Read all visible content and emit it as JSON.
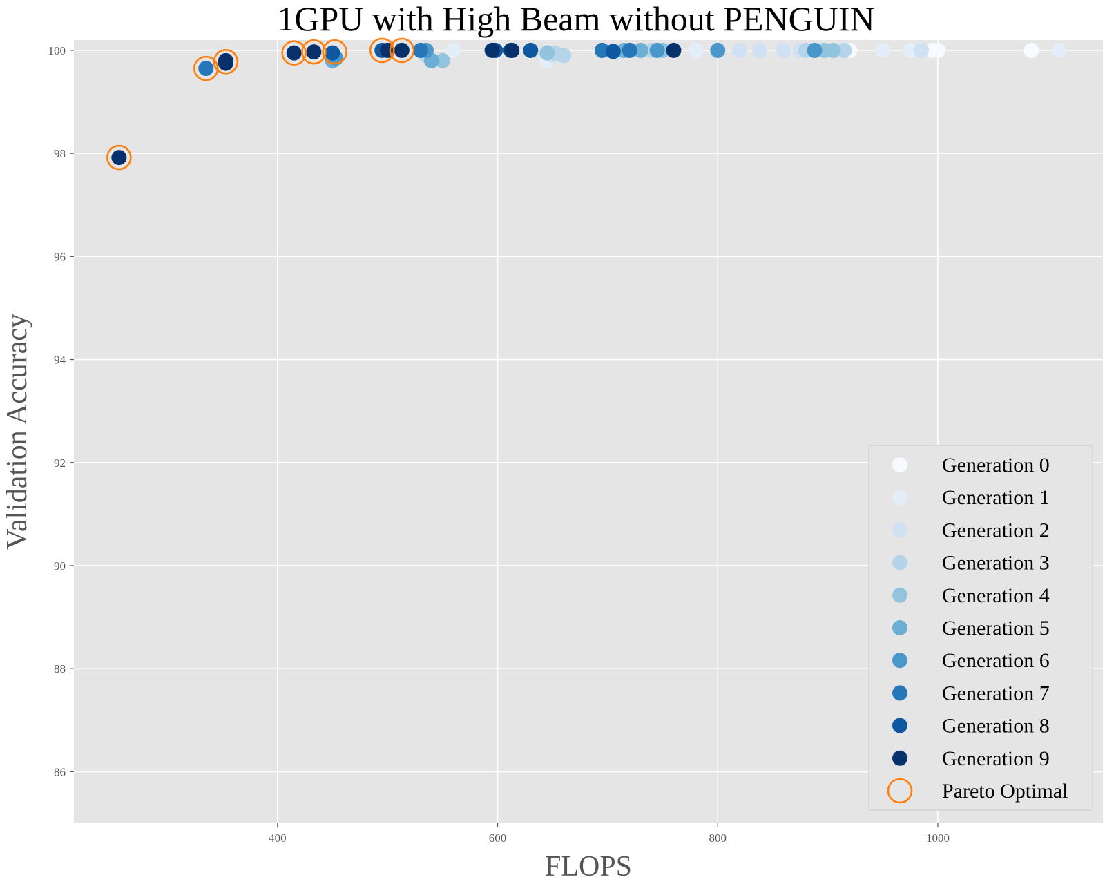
{
  "chart_data": {
    "type": "scatter",
    "title": "1GPU with High Beam without PENGUIN",
    "xlabel": "FLOPS",
    "ylabel": "Validation Accuracy",
    "xlim": [
      215,
      1150
    ],
    "ylim": [
      85,
      100.2
    ],
    "xticks": [
      400,
      600,
      800,
      1000
    ],
    "yticks": [
      86,
      88,
      90,
      92,
      94,
      96,
      98,
      100
    ],
    "grid": true,
    "legend_position": "lower-right",
    "series": [
      {
        "name": "Generation 0",
        "color": "#f7fbff",
        "points": [
          [
            920,
            100
          ],
          [
            1000,
            100
          ],
          [
            1085,
            100
          ],
          [
            995,
            100
          ],
          [
            600,
            100
          ]
        ]
      },
      {
        "name": "Generation 1",
        "color": "#e3eef9",
        "points": [
          [
            780,
            100
          ],
          [
            950,
            100
          ],
          [
            975,
            100
          ],
          [
            1110,
            100
          ],
          [
            645,
            99.8
          ],
          [
            560,
            100
          ]
        ]
      },
      {
        "name": "Generation 2",
        "color": "#cfe1f2",
        "points": [
          [
            820,
            100
          ],
          [
            838,
            100
          ],
          [
            860,
            100
          ],
          [
            875,
            100
          ],
          [
            985,
            100
          ],
          [
            650,
            99.9
          ],
          [
            708,
            99.95
          ]
        ]
      },
      {
        "name": "Generation 3",
        "color": "#b5d4e9",
        "points": [
          [
            660,
            99.9
          ],
          [
            652,
            99.95
          ],
          [
            535,
            99.9
          ],
          [
            915,
            100
          ],
          [
            740,
            100
          ],
          [
            880,
            100
          ]
        ]
      },
      {
        "name": "Generation 4",
        "color": "#93c4de",
        "points": [
          [
            550,
            99.8
          ],
          [
            645,
            99.95
          ],
          [
            905,
            100
          ],
          [
            750,
            100
          ],
          [
            897,
            100
          ]
        ]
      },
      {
        "name": "Generation 5",
        "color": "#6daed5",
        "points": [
          [
            540,
            99.8
          ],
          [
            450,
            99.8
          ],
          [
            730,
            100
          ],
          [
            715,
            100
          ]
        ]
      },
      {
        "name": "Generation 6",
        "color": "#4a98c9",
        "points": [
          [
            800,
            100
          ],
          [
            888,
            100
          ],
          [
            535,
            100
          ],
          [
            745,
            100
          ],
          [
            453,
            99.85
          ]
        ]
      },
      {
        "name": "Generation 7",
        "color": "#2676b8",
        "points": [
          [
            335,
            99.65
          ],
          [
            530,
            100
          ],
          [
            720,
            100
          ],
          [
            695,
            100
          ]
        ]
      },
      {
        "name": "Generation 8",
        "color": "#0d58a1",
        "points": [
          [
            450,
            99.95
          ],
          [
            495,
            100
          ],
          [
            630,
            100
          ],
          [
            705,
            99.98
          ],
          [
            598,
            100
          ],
          [
            612,
            100
          ]
        ]
      },
      {
        "name": "Generation 9",
        "color": "#08306b",
        "points": [
          [
            256,
            97.92
          ],
          [
            353,
            99.75
          ],
          [
            353,
            99.8
          ],
          [
            415,
            99.95
          ],
          [
            433,
            99.97
          ],
          [
            513,
            100
          ],
          [
            595,
            100
          ],
          [
            613,
            100
          ],
          [
            760,
            100
          ],
          [
            500,
            100
          ]
        ]
      }
    ],
    "pareto_optimal": {
      "name": "Pareto Optimal",
      "color": "#ff7f0e",
      "points": [
        [
          256,
          97.92
        ],
        [
          335,
          99.65
        ],
        [
          353,
          99.78
        ],
        [
          415,
          99.95
        ],
        [
          433,
          99.97
        ],
        [
          452,
          99.97
        ],
        [
          495,
          100
        ],
        [
          513,
          100
        ]
      ]
    }
  }
}
